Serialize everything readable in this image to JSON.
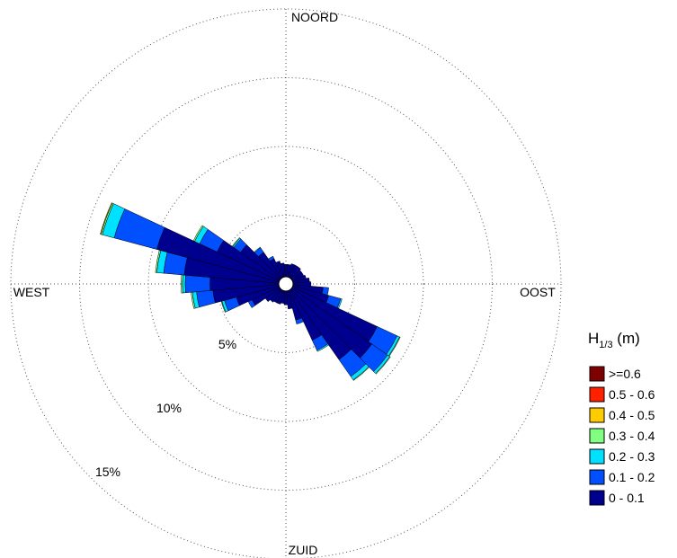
{
  "chart_data": {
    "type": "polar-bar",
    "subtype": "wave-rose",
    "directions": {
      "north": "NOORD",
      "east": "OOST",
      "south": "ZUID",
      "west": "WEST"
    },
    "ring_labels": [
      "5%",
      "10%",
      "15%"
    ],
    "ring_values": [
      5,
      10,
      15
    ],
    "rmax": 20,
    "grid": true,
    "legend": {
      "title_main": "H",
      "title_sub": "1/3",
      "title_unit": " (m)",
      "placement": "right",
      "classes": [
        {
          "label": ">=0.6",
          "color": "#7f0000"
        },
        {
          "label": "0.5 - 0.6",
          "color": "#ff2000"
        },
        {
          "label": "0.4 - 0.5",
          "color": "#ffcc00"
        },
        {
          "label": "0.3 - 0.4",
          "color": "#80ff80"
        },
        {
          "label": "0.2 - 0.3",
          "color": "#00e0ff"
        },
        {
          "label": "0.1 - 0.2",
          "color": "#0050ff"
        },
        {
          "label": "0 - 0.1",
          "color": "#00008f"
        }
      ]
    },
    "sector_width_deg": 10,
    "series_order": [
      "0 - 0.1",
      "0.1 - 0.2",
      "0.2 - 0.3",
      "0.3 - 0.4",
      "0.4 - 0.5"
    ],
    "sectors": [
      {
        "dir": 0,
        "values": [
          0.9,
          0.0,
          0.0,
          0.0,
          0.0
        ]
      },
      {
        "dir": 10,
        "values": [
          0.9,
          0.0,
          0.0,
          0.0,
          0.0
        ]
      },
      {
        "dir": 20,
        "values": [
          1.0,
          0.0,
          0.0,
          0.0,
          0.0
        ]
      },
      {
        "dir": 30,
        "values": [
          1.0,
          0.0,
          0.0,
          0.0,
          0.0
        ]
      },
      {
        "dir": 40,
        "values": [
          1.0,
          0.0,
          0.0,
          0.0,
          0.0
        ]
      },
      {
        "dir": 50,
        "values": [
          0.9,
          0.0,
          0.0,
          0.0,
          0.0
        ]
      },
      {
        "dir": 60,
        "values": [
          0.9,
          0.0,
          0.0,
          0.0,
          0.0
        ]
      },
      {
        "dir": 70,
        "values": [
          1.0,
          0.0,
          0.0,
          0.0,
          0.0
        ]
      },
      {
        "dir": 80,
        "values": [
          1.2,
          0.0,
          0.0,
          0.0,
          0.0
        ]
      },
      {
        "dir": 90,
        "values": [
          1.3,
          0.0,
          0.0,
          0.0,
          0.0
        ]
      },
      {
        "dir": 100,
        "values": [
          2.2,
          0.4,
          0.0,
          0.0,
          0.0
        ]
      },
      {
        "dir": 110,
        "values": [
          2.7,
          0.9,
          0.1,
          0.0,
          0.0
        ]
      },
      {
        "dir": 120,
        "values": [
          6.8,
          1.6,
          0.2,
          0.05,
          0.0
        ]
      },
      {
        "dir": 130,
        "values": [
          7.1,
          1.4,
          0.2,
          0.05,
          0.0
        ]
      },
      {
        "dir": 140,
        "values": [
          6.2,
          1.5,
          0.3,
          0.05,
          0.0
        ]
      },
      {
        "dir": 150,
        "values": [
          4.0,
          0.8,
          0.1,
          0.0,
          0.0
        ]
      },
      {
        "dir": 160,
        "values": [
          2.2,
          0.3,
          0.0,
          0.0,
          0.0
        ]
      },
      {
        "dir": 170,
        "values": [
          1.3,
          0.0,
          0.0,
          0.0,
          0.0
        ]
      },
      {
        "dir": 180,
        "values": [
          1.0,
          0.0,
          0.0,
          0.0,
          0.0
        ]
      },
      {
        "dir": 190,
        "values": [
          0.9,
          0.0,
          0.0,
          0.0,
          0.0
        ]
      },
      {
        "dir": 200,
        "values": [
          1.0,
          0.0,
          0.0,
          0.0,
          0.0
        ]
      },
      {
        "dir": 210,
        "values": [
          1.0,
          0.0,
          0.0,
          0.0,
          0.0
        ]
      },
      {
        "dir": 220,
        "values": [
          1.1,
          0.0,
          0.0,
          0.0,
          0.0
        ]
      },
      {
        "dir": 230,
        "values": [
          1.3,
          0.0,
          0.0,
          0.0,
          0.0
        ]
      },
      {
        "dir": 240,
        "values": [
          2.2,
          0.3,
          0.0,
          0.0,
          0.0
        ]
      },
      {
        "dir": 250,
        "values": [
          3.2,
          0.9,
          0.2,
          0.05,
          0.0
        ]
      },
      {
        "dir": 260,
        "values": [
          4.8,
          1.2,
          0.3,
          0.1,
          0.0
        ]
      },
      {
        "dir": 270,
        "values": [
          5.0,
          1.8,
          0.2,
          0.1,
          0.0
        ]
      },
      {
        "dir": 280,
        "values": [
          6.9,
          1.5,
          0.5,
          0.1,
          0.0
        ]
      },
      {
        "dir": 290,
        "values": [
          9.2,
          3.2,
          0.9,
          0.1,
          0.05
        ]
      },
      {
        "dir": 300,
        "values": [
          5.0,
          1.4,
          0.4,
          0.1,
          0.0
        ]
      },
      {
        "dir": 310,
        "values": [
          3.5,
          0.6,
          0.1,
          0.05,
          0.0
        ]
      },
      {
        "dir": 320,
        "values": [
          2.3,
          0.4,
          0.05,
          0.0,
          0.0
        ]
      },
      {
        "dir": 330,
        "values": [
          1.5,
          0.2,
          0.0,
          0.0,
          0.0
        ]
      },
      {
        "dir": 340,
        "values": [
          1.2,
          0.0,
          0.0,
          0.0,
          0.0
        ]
      },
      {
        "dir": 350,
        "values": [
          1.0,
          0.0,
          0.0,
          0.0,
          0.0
        ]
      }
    ]
  }
}
